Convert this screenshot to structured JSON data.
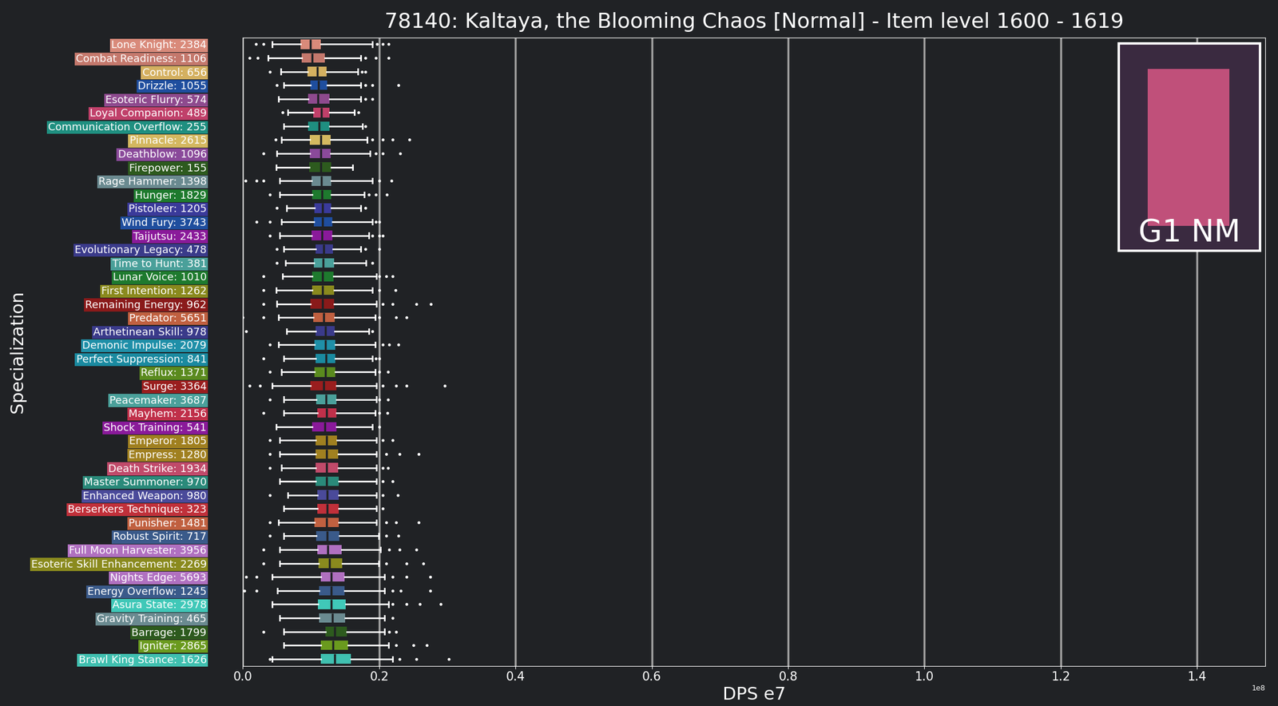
{
  "chart_data": {
    "type": "boxplot",
    "orientation": "horizontal",
    "title": "78140: Kaltaya, the Blooming Chaos [Normal] - Item level 1600 - 1619",
    "x_label": "DPS e7",
    "y_label": "Specialization",
    "offset_label": "1e8",
    "badge": "G1 NM",
    "grid": true,
    "xlim": [
      0.0,
      1.5
    ],
    "xticks": [
      0.0,
      0.2,
      0.4,
      0.6,
      0.8,
      1.0,
      1.2,
      1.4
    ],
    "categories": [
      "Lone Knight: 2384",
      "Combat Readiness: 1106",
      "Control: 656",
      "Drizzle: 1055",
      "Esoteric Flurry: 574",
      "Loyal Companion: 489",
      "Communication Overflow: 255",
      "Pinnacle: 2615",
      "Deathblow: 1096",
      "Firepower: 155",
      "Rage Hammer: 1398",
      "Hunger: 1829",
      "Pistoleer: 1205",
      "Wind Fury: 3743",
      "Taijutsu: 2433",
      "Evolutionary Legacy: 478",
      "Time to Hunt: 381",
      "Lunar Voice: 1010",
      "First Intention: 1262",
      "Remaining Energy: 962",
      "Predator: 5651",
      "Arthetinean Skill: 978",
      "Demonic Impulse: 2079",
      "Perfect Suppression: 841",
      "Reflux: 1371",
      "Surge: 3364",
      "Peacemaker: 3687",
      "Mayhem: 2156",
      "Shock Training: 541",
      "Emperor: 1805",
      "Empress: 1280",
      "Death Strike: 1934",
      "Master Summoner: 970",
      "Enhanced Weapon: 980",
      "Berserkers Technique: 323",
      "Punisher: 1481",
      "Robust Spirit: 717",
      "Full Moon Harvester: 3956",
      "Esoteric Skill Enhancement: 2269",
      "Nights Edge: 5693",
      "Energy Overflow: 1245",
      "Asura State: 2978",
      "Gravity Training: 465",
      "Barrage: 1799",
      "Igniter: 2865",
      "Brawl King Stance: 1626"
    ],
    "colors": [
      "#d98a7a",
      "#c4786c",
      "#d4b060",
      "#1f4e9e",
      "#8e4a8e",
      "#c0406a",
      "#1f8f80",
      "#d4b860",
      "#8a4a9a",
      "#2d5a1e",
      "#6a8a90",
      "#1e7a2e",
      "#3a3a9a",
      "#1f4e9e",
      "#8a1a9a",
      "#3a3a8a",
      "#4aa09a",
      "#1e7a2e",
      "#8a8a1e",
      "#8a1a1a",
      "#c06040",
      "#3a3a8a",
      "#1f8fa8",
      "#1a8aa0",
      "#5a8a1e",
      "#9a1e1e",
      "#4aa09a",
      "#c0304a",
      "#8a1a9a",
      "#a08020",
      "#a08020",
      "#c04a6a",
      "#2a8a7a",
      "#4a4a9a",
      "#c0303a",
      "#c06040",
      "#3a5a8a",
      "#b070c0",
      "#8a8a1e",
      "#b070c0",
      "#3a5a8a",
      "#40c8b8",
      "#6a8a90",
      "#2d5a1e",
      "#6a9a1e",
      "#40c0b0"
    ],
    "whisker_low": [
      0.043,
      0.037,
      0.056,
      0.06,
      0.052,
      0.066,
      0.06,
      0.057,
      0.05,
      0.049,
      0.054,
      0.054,
      0.064,
      0.057,
      0.054,
      0.06,
      0.063,
      0.058,
      0.049,
      0.05,
      0.052,
      0.064,
      0.052,
      0.06,
      0.057,
      0.043,
      0.06,
      0.06,
      0.049,
      0.054,
      0.054,
      0.057,
      0.054,
      0.066,
      0.06,
      0.052,
      0.06,
      0.054,
      0.054,
      0.043,
      0.051,
      0.043,
      0.054,
      0.06,
      0.06,
      0.043
    ],
    "q1": [
      0.085,
      0.086,
      0.095,
      0.099,
      0.096,
      0.103,
      0.096,
      0.098,
      0.098,
      0.097,
      0.101,
      0.102,
      0.105,
      0.104,
      0.101,
      0.107,
      0.104,
      0.102,
      0.102,
      0.099,
      0.103,
      0.107,
      0.105,
      0.107,
      0.105,
      0.099,
      0.108,
      0.109,
      0.102,
      0.107,
      0.107,
      0.107,
      0.107,
      0.109,
      0.109,
      0.105,
      0.108,
      0.109,
      0.111,
      0.114,
      0.112,
      0.11,
      0.112,
      0.121,
      0.114,
      0.114
    ],
    "median": [
      0.099,
      0.102,
      0.109,
      0.111,
      0.11,
      0.115,
      0.112,
      0.114,
      0.114,
      0.114,
      0.115,
      0.116,
      0.117,
      0.117,
      0.116,
      0.119,
      0.118,
      0.117,
      0.117,
      0.117,
      0.119,
      0.121,
      0.121,
      0.122,
      0.121,
      0.119,
      0.122,
      0.123,
      0.12,
      0.123,
      0.123,
      0.123,
      0.123,
      0.124,
      0.124,
      0.123,
      0.124,
      0.125,
      0.127,
      0.13,
      0.13,
      0.13,
      0.131,
      0.135,
      0.132,
      0.135
    ],
    "q3": [
      0.114,
      0.12,
      0.123,
      0.124,
      0.127,
      0.127,
      0.127,
      0.129,
      0.129,
      0.13,
      0.13,
      0.13,
      0.13,
      0.131,
      0.131,
      0.132,
      0.134,
      0.133,
      0.134,
      0.134,
      0.135,
      0.135,
      0.136,
      0.136,
      0.136,
      0.137,
      0.137,
      0.137,
      0.137,
      0.138,
      0.14,
      0.14,
      0.141,
      0.141,
      0.141,
      0.141,
      0.142,
      0.145,
      0.146,
      0.149,
      0.149,
      0.151,
      0.15,
      0.153,
      0.154,
      0.159
    ],
    "whisker_high": [
      0.19,
      0.173,
      0.169,
      0.173,
      0.173,
      0.164,
      0.176,
      0.182,
      0.187,
      0.161,
      0.19,
      0.178,
      0.173,
      0.19,
      0.185,
      0.173,
      0.181,
      0.196,
      0.19,
      0.196,
      0.194,
      0.185,
      0.194,
      0.19,
      0.194,
      0.196,
      0.196,
      0.194,
      0.19,
      0.196,
      0.196,
      0.196,
      0.196,
      0.196,
      0.196,
      0.196,
      0.199,
      0.202,
      0.199,
      0.208,
      0.208,
      0.214,
      0.208,
      0.208,
      0.214,
      0.22
    ],
    "fliers": [
      [
        0.019,
        0.03,
        0.197,
        0.205,
        0.214
      ],
      [
        0.01,
        0.022,
        0.18,
        0.195,
        0.214
      ],
      [
        0.04,
        0.175,
        0.18
      ],
      [
        0.05,
        0.18,
        0.19,
        0.228
      ],
      [
        0.18,
        0.19
      ],
      [
        0.058,
        0.17
      ],
      [
        0.18
      ],
      [
        0.048,
        0.19,
        0.205,
        0.22,
        0.244
      ],
      [
        0.03,
        0.195,
        0.205,
        0.231
      ],
      [],
      [
        0.004,
        0.02,
        0.03,
        0.2,
        0.218
      ],
      [
        0.04,
        0.185,
        0.195,
        0.211
      ],
      [
        0.05,
        0.18
      ],
      [
        0.02,
        0.04,
        0.195,
        0.2
      ],
      [
        0.04,
        0.19,
        0.2,
        0.205
      ],
      [
        0.05,
        0.18,
        0.2
      ],
      [
        0.05,
        0.19
      ],
      [
        0.03,
        0.2,
        0.21,
        0.22
      ],
      [
        0.03,
        0.2,
        0.224
      ],
      [
        0.03,
        0.205,
        0.22,
        0.255,
        0.276
      ],
      [
        0.0,
        0.03,
        0.2,
        0.225,
        0.24
      ],
      [
        0.005,
        0.19
      ],
      [
        0.04,
        0.205,
        0.215,
        0.228
      ],
      [
        0.03,
        0.195,
        0.2
      ],
      [
        0.04,
        0.2,
        0.213
      ],
      [
        0.01,
        0.025,
        0.205,
        0.225,
        0.24,
        0.296
      ],
      [
        0.04,
        0.2,
        0.213
      ],
      [
        0.03,
        0.2,
        0.212
      ],
      [
        0.2
      ],
      [
        0.04,
        0.205,
        0.22
      ],
      [
        0.04,
        0.21,
        0.23,
        0.258
      ],
      [
        0.04,
        0.205,
        0.213
      ],
      [
        0.205,
        0.22
      ],
      [
        0.04,
        0.205,
        0.227
      ],
      [
        0.205
      ],
      [
        0.04,
        0.21,
        0.225,
        0.258
      ],
      [
        0.04,
        0.21,
        0.228
      ],
      [
        0.03,
        0.215,
        0.23,
        0.255
      ],
      [
        0.03,
        0.21,
        0.24,
        0.265
      ],
      [
        0.005,
        0.02,
        0.22,
        0.24,
        0.275
      ],
      [
        0.002,
        0.02,
        0.22,
        0.232,
        0.275
      ],
      [
        0.22,
        0.24,
        0.26,
        0.29
      ],
      [
        0.22
      ],
      [
        0.03,
        0.215,
        0.225
      ],
      [
        0.225,
        0.25,
        0.27
      ],
      [
        0.04,
        0.23,
        0.255,
        0.302
      ]
    ]
  }
}
